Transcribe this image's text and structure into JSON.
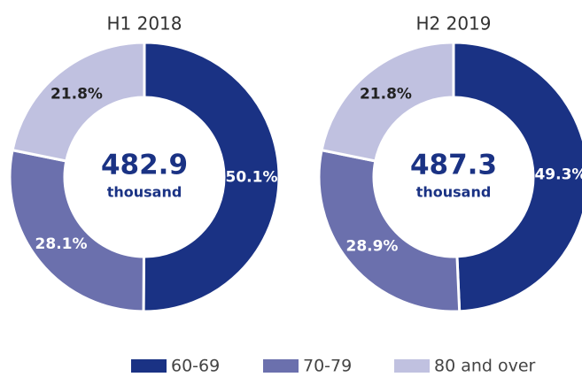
{
  "chart_data": [
    {
      "type": "pie",
      "title": "H1 2018",
      "categories": [
        "60-69",
        "70-79",
        "80 and over"
      ],
      "values": [
        50.1,
        28.1,
        21.8
      ],
      "value_labels": [
        "50.1%",
        "28.1%",
        "21.8%"
      ],
      "colors": [
        "#1a3284",
        "#6b70ad",
        "#c0c1e0"
      ],
      "total": 482.9,
      "total_unit": "thousand"
    },
    {
      "type": "pie",
      "title": "H2 2019",
      "categories": [
        "60-69",
        "70-79",
        "80 and over"
      ],
      "values": [
        49.3,
        28.9,
        21.8
      ],
      "value_labels": [
        "49.3%",
        "28.9%",
        "21.8%"
      ],
      "colors": [
        "#1a3284",
        "#6b70ad",
        "#c0c1e0"
      ],
      "total": 487.3,
      "total_unit": "thousand"
    }
  ]
}
